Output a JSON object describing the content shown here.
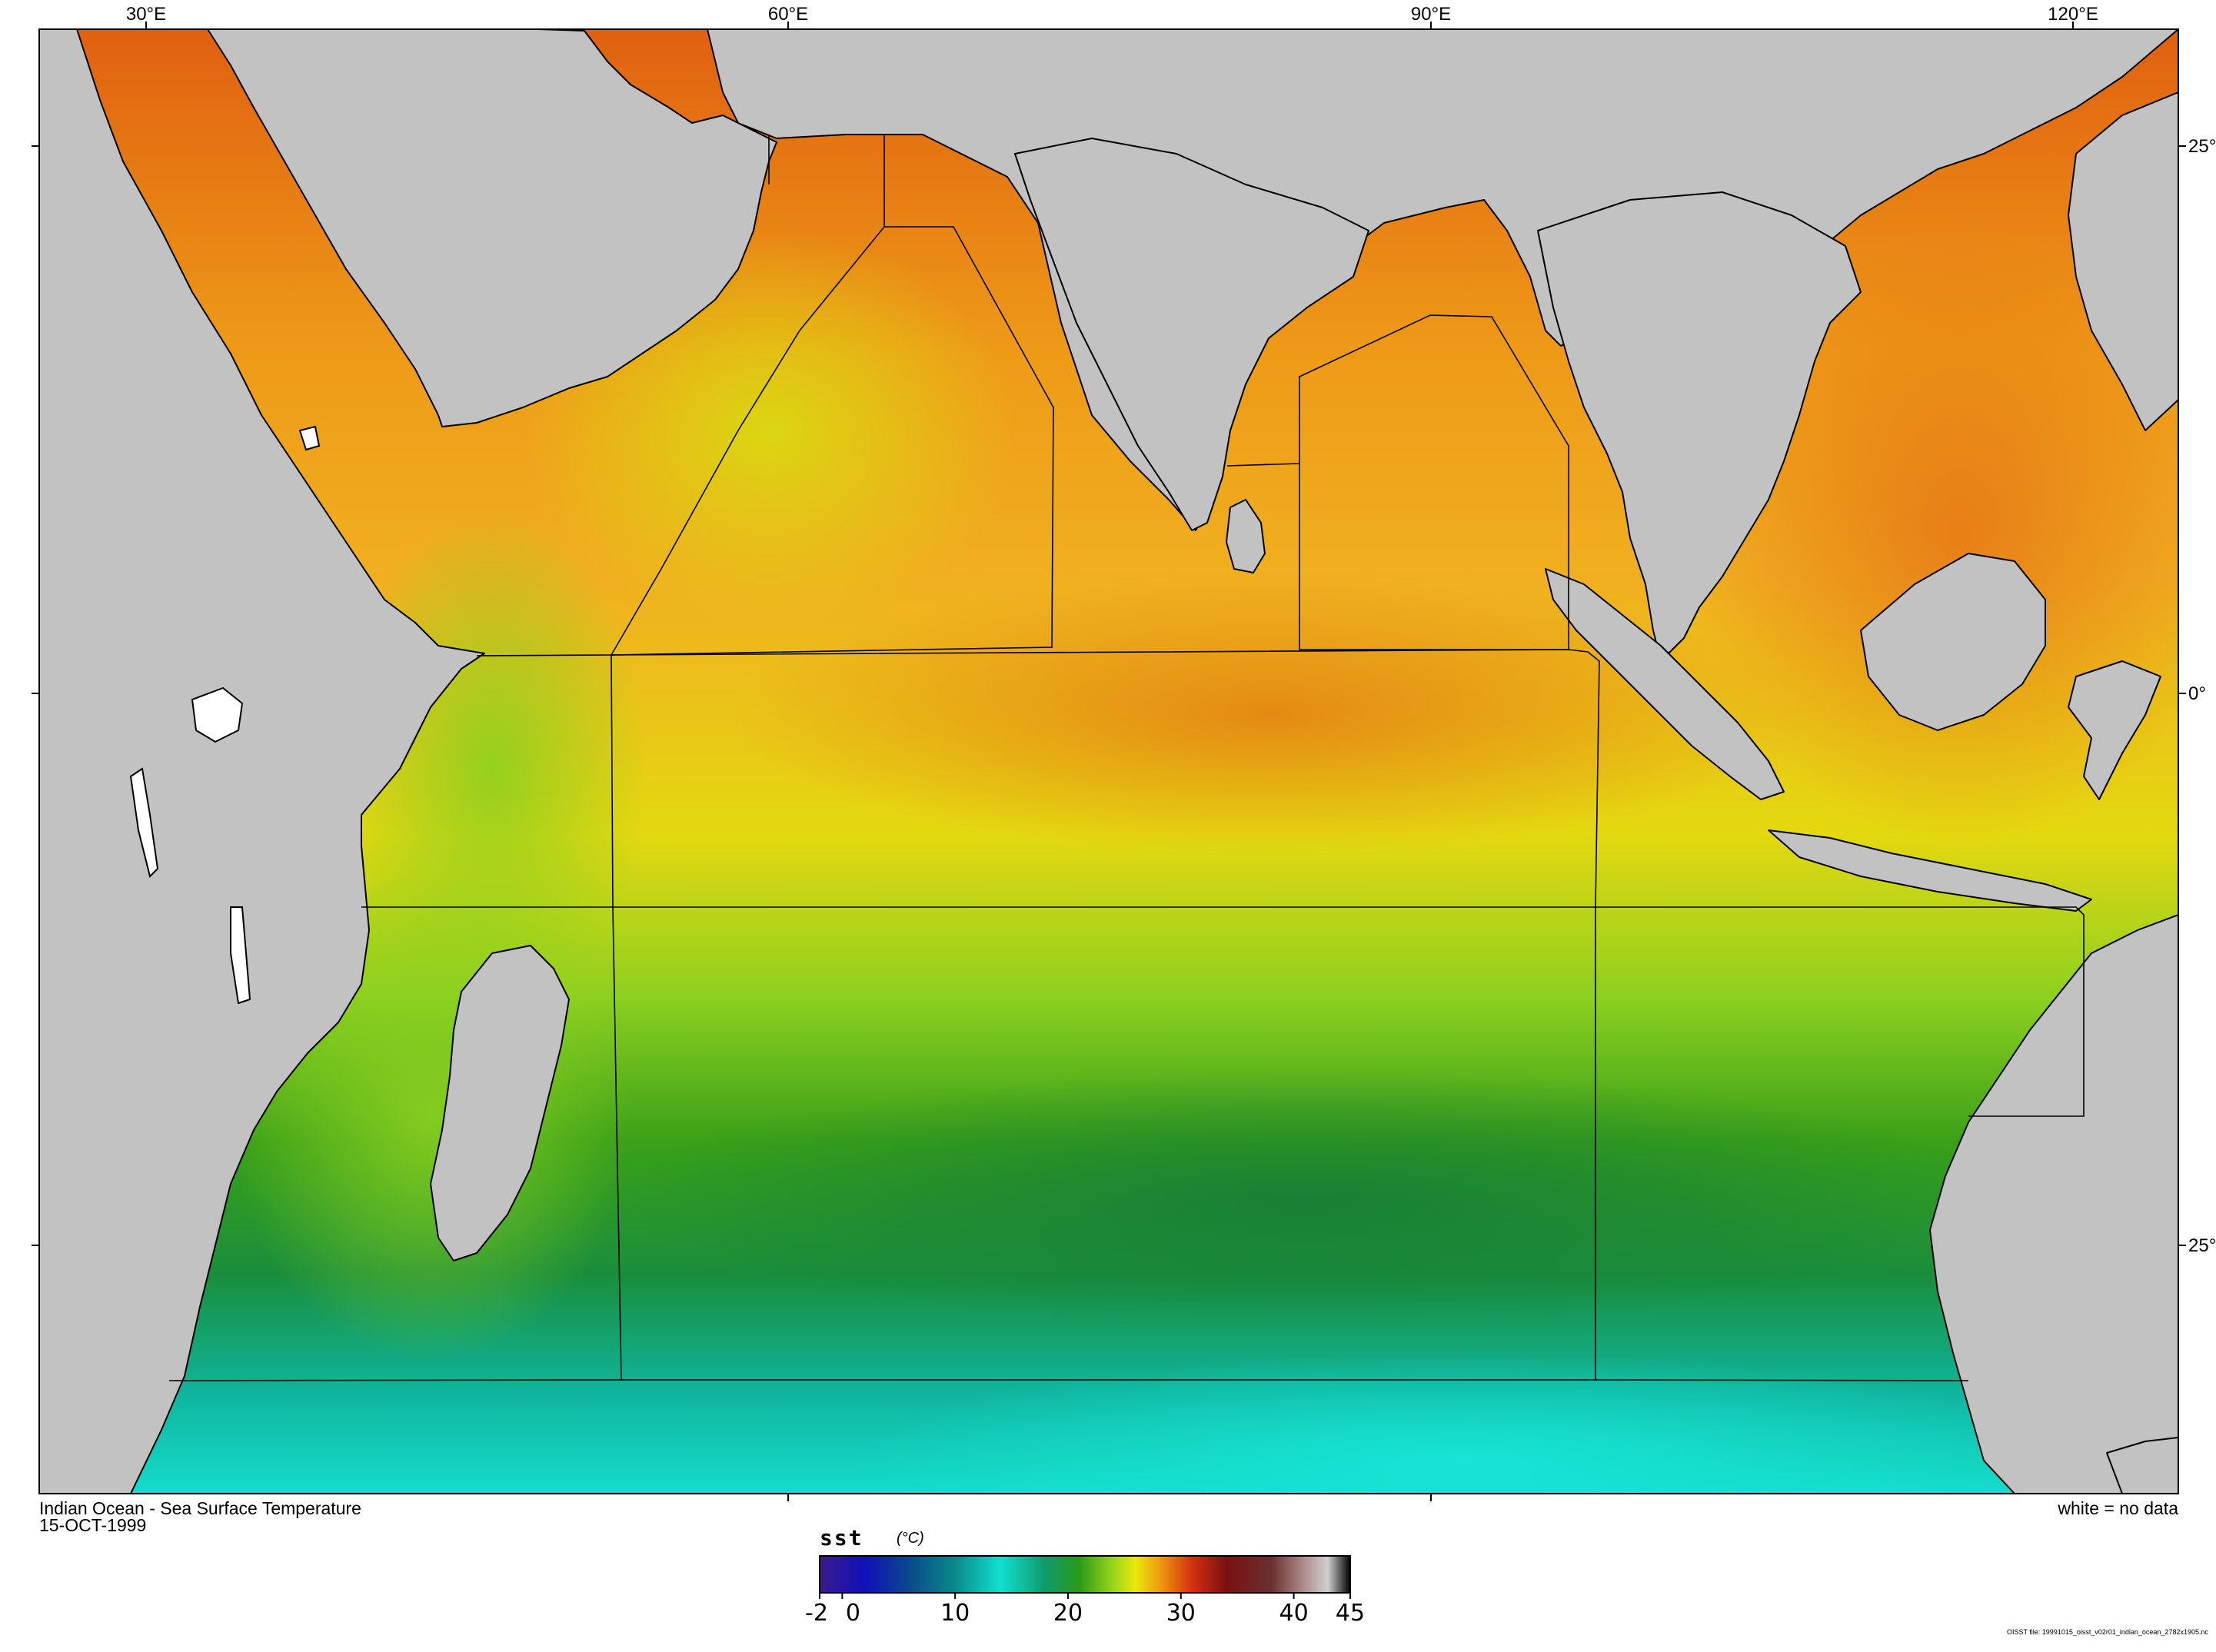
{
  "map": {
    "title": "Indian Ocean - Sea Surface Temperature",
    "date": "15-OCT-1999",
    "no_data_note": "white = no data",
    "file_note": "OISST file: 19991015_oisst_v02r01_indian_ocean_2782x1905.nc",
    "lon_labels": [
      "30°E",
      "60°E",
      "90°E",
      "120°E"
    ],
    "lat_labels": [
      "25°",
      "0°",
      "25°"
    ],
    "colors": {
      "land": "#c2c2c2",
      "no_data": "#ffffff",
      "coast": "#000000"
    }
  },
  "colorbar": {
    "variable": "sst",
    "units": "(°C)",
    "min": -2,
    "max": 45,
    "tick_labels": [
      "-2",
      "0",
      "10",
      "20",
      "30",
      "40",
      "45"
    ],
    "tick_values": [
      -2,
      0,
      10,
      20,
      30,
      40,
      45
    ],
    "stops": [
      {
        "value": -2,
        "color": "#3a1a8c"
      },
      {
        "value": 2,
        "color": "#1010b8"
      },
      {
        "value": 6,
        "color": "#0a4a8a"
      },
      {
        "value": 10,
        "color": "#0a8a8a"
      },
      {
        "value": 14,
        "color": "#10e0d0"
      },
      {
        "value": 18,
        "color": "#109a6a"
      },
      {
        "value": 21,
        "color": "#2a9a18"
      },
      {
        "value": 24,
        "color": "#9ad61a"
      },
      {
        "value": 26,
        "color": "#e8e80a"
      },
      {
        "value": 28,
        "color": "#f0a010"
      },
      {
        "value": 31,
        "color": "#d43010"
      },
      {
        "value": 34,
        "color": "#7a1010"
      },
      {
        "value": 38,
        "color": "#6a3030"
      },
      {
        "value": 41,
        "color": "#b09090"
      },
      {
        "value": 43,
        "color": "#d0d0d0"
      },
      {
        "value": 45,
        "color": "#000000"
      }
    ]
  }
}
